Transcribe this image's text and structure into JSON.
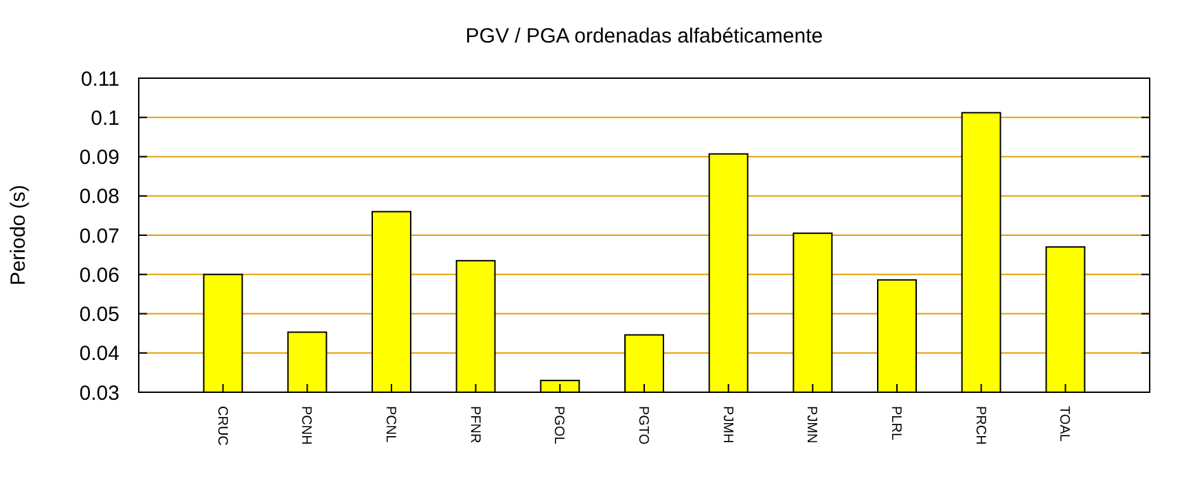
{
  "chart_data": {
    "type": "bar",
    "title": "PGV / PGA ordenadas alfabéticamente",
    "ylabel": "Periodo (s)",
    "categories": [
      "CRUC",
      "PCNH",
      "PCNL",
      "PFNR",
      "PGOL",
      "PGTO",
      "PJMH",
      "PJMN",
      "PLRL",
      "PRCH",
      "TOAL"
    ],
    "values": [
      0.06,
      0.0453,
      0.076,
      0.0635,
      0.033,
      0.0446,
      0.0907,
      0.0705,
      0.0586,
      0.1012,
      0.067
    ],
    "color": "#ffff00",
    "ylim": [
      0.03,
      0.11
    ],
    "yticks": [
      0.03,
      0.04,
      0.05,
      0.06,
      0.07,
      0.08,
      0.09,
      0.1,
      0.11
    ],
    "grid": "y"
  }
}
